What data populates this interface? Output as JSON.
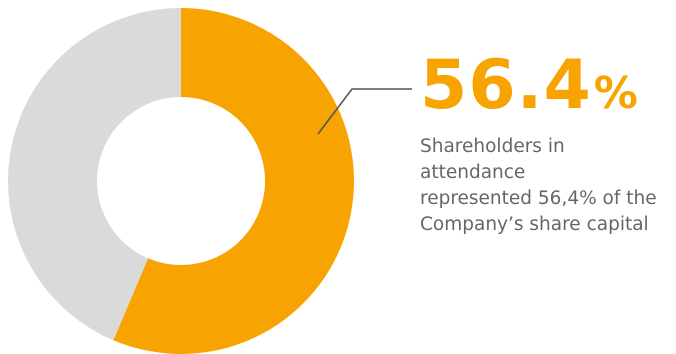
{
  "chart_data": {
    "type": "pie",
    "variant": "donut",
    "slices": [
      {
        "value": 56.4,
        "color": "#f7a402"
      },
      {
        "value": 43.6,
        "color": "#dadada"
      }
    ],
    "title": "",
    "legend": "none"
  },
  "callout": {
    "value": "56.4",
    "unit": "%",
    "text": "Shareholders  in attendance\nrepresented  56,4% of the\nCompany’s share capital"
  },
  "colors": {
    "accent": "#f7a402",
    "remainder": "#dadada",
    "leader_line": "#555555",
    "caption": "#666666"
  }
}
